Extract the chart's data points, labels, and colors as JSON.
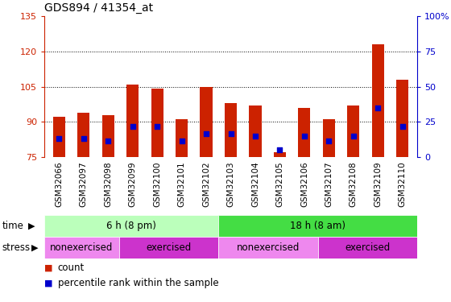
{
  "title": "GDS894 / 41354_at",
  "samples": [
    "GSM32066",
    "GSM32097",
    "GSM32098",
    "GSM32099",
    "GSM32100",
    "GSM32101",
    "GSM32102",
    "GSM32103",
    "GSM32104",
    "GSM32105",
    "GSM32106",
    "GSM32107",
    "GSM32108",
    "GSM32109",
    "GSM32110"
  ],
  "count_values": [
    92,
    94,
    93,
    106,
    104,
    91,
    105,
    98,
    97,
    77,
    96,
    91,
    97,
    123,
    108
  ],
  "percentile_values": [
    83,
    83,
    82,
    88,
    88,
    82,
    85,
    85,
    84,
    78,
    84,
    82,
    84,
    96,
    88
  ],
  "ylim_left": [
    75,
    135
  ],
  "ylim_right": [
    0,
    100
  ],
  "yticks_left": [
    75,
    90,
    105,
    120,
    135
  ],
  "yticks_right": [
    0,
    25,
    50,
    75,
    100
  ],
  "bar_color": "#cc2200",
  "dot_color": "#0000cc",
  "time_labels": [
    "6 h (8 pm)",
    "18 h (8 am)"
  ],
  "time_colors": [
    "#bbffbb",
    "#44dd44"
  ],
  "time_ranges": [
    [
      0,
      7
    ],
    [
      7,
      15
    ]
  ],
  "stress_labels": [
    "nonexercised",
    "exercised",
    "nonexercised",
    "exercised"
  ],
  "stress_colors": [
    "#ee88ee",
    "#cc33cc",
    "#ee88ee",
    "#cc33cc"
  ],
  "stress_ranges": [
    [
      0,
      3
    ],
    [
      3,
      7
    ],
    [
      7,
      11
    ],
    [
      11,
      15
    ]
  ],
  "background_color": "#ffffff",
  "bar_width": 0.5,
  "xlabels_bg": "#cccccc"
}
